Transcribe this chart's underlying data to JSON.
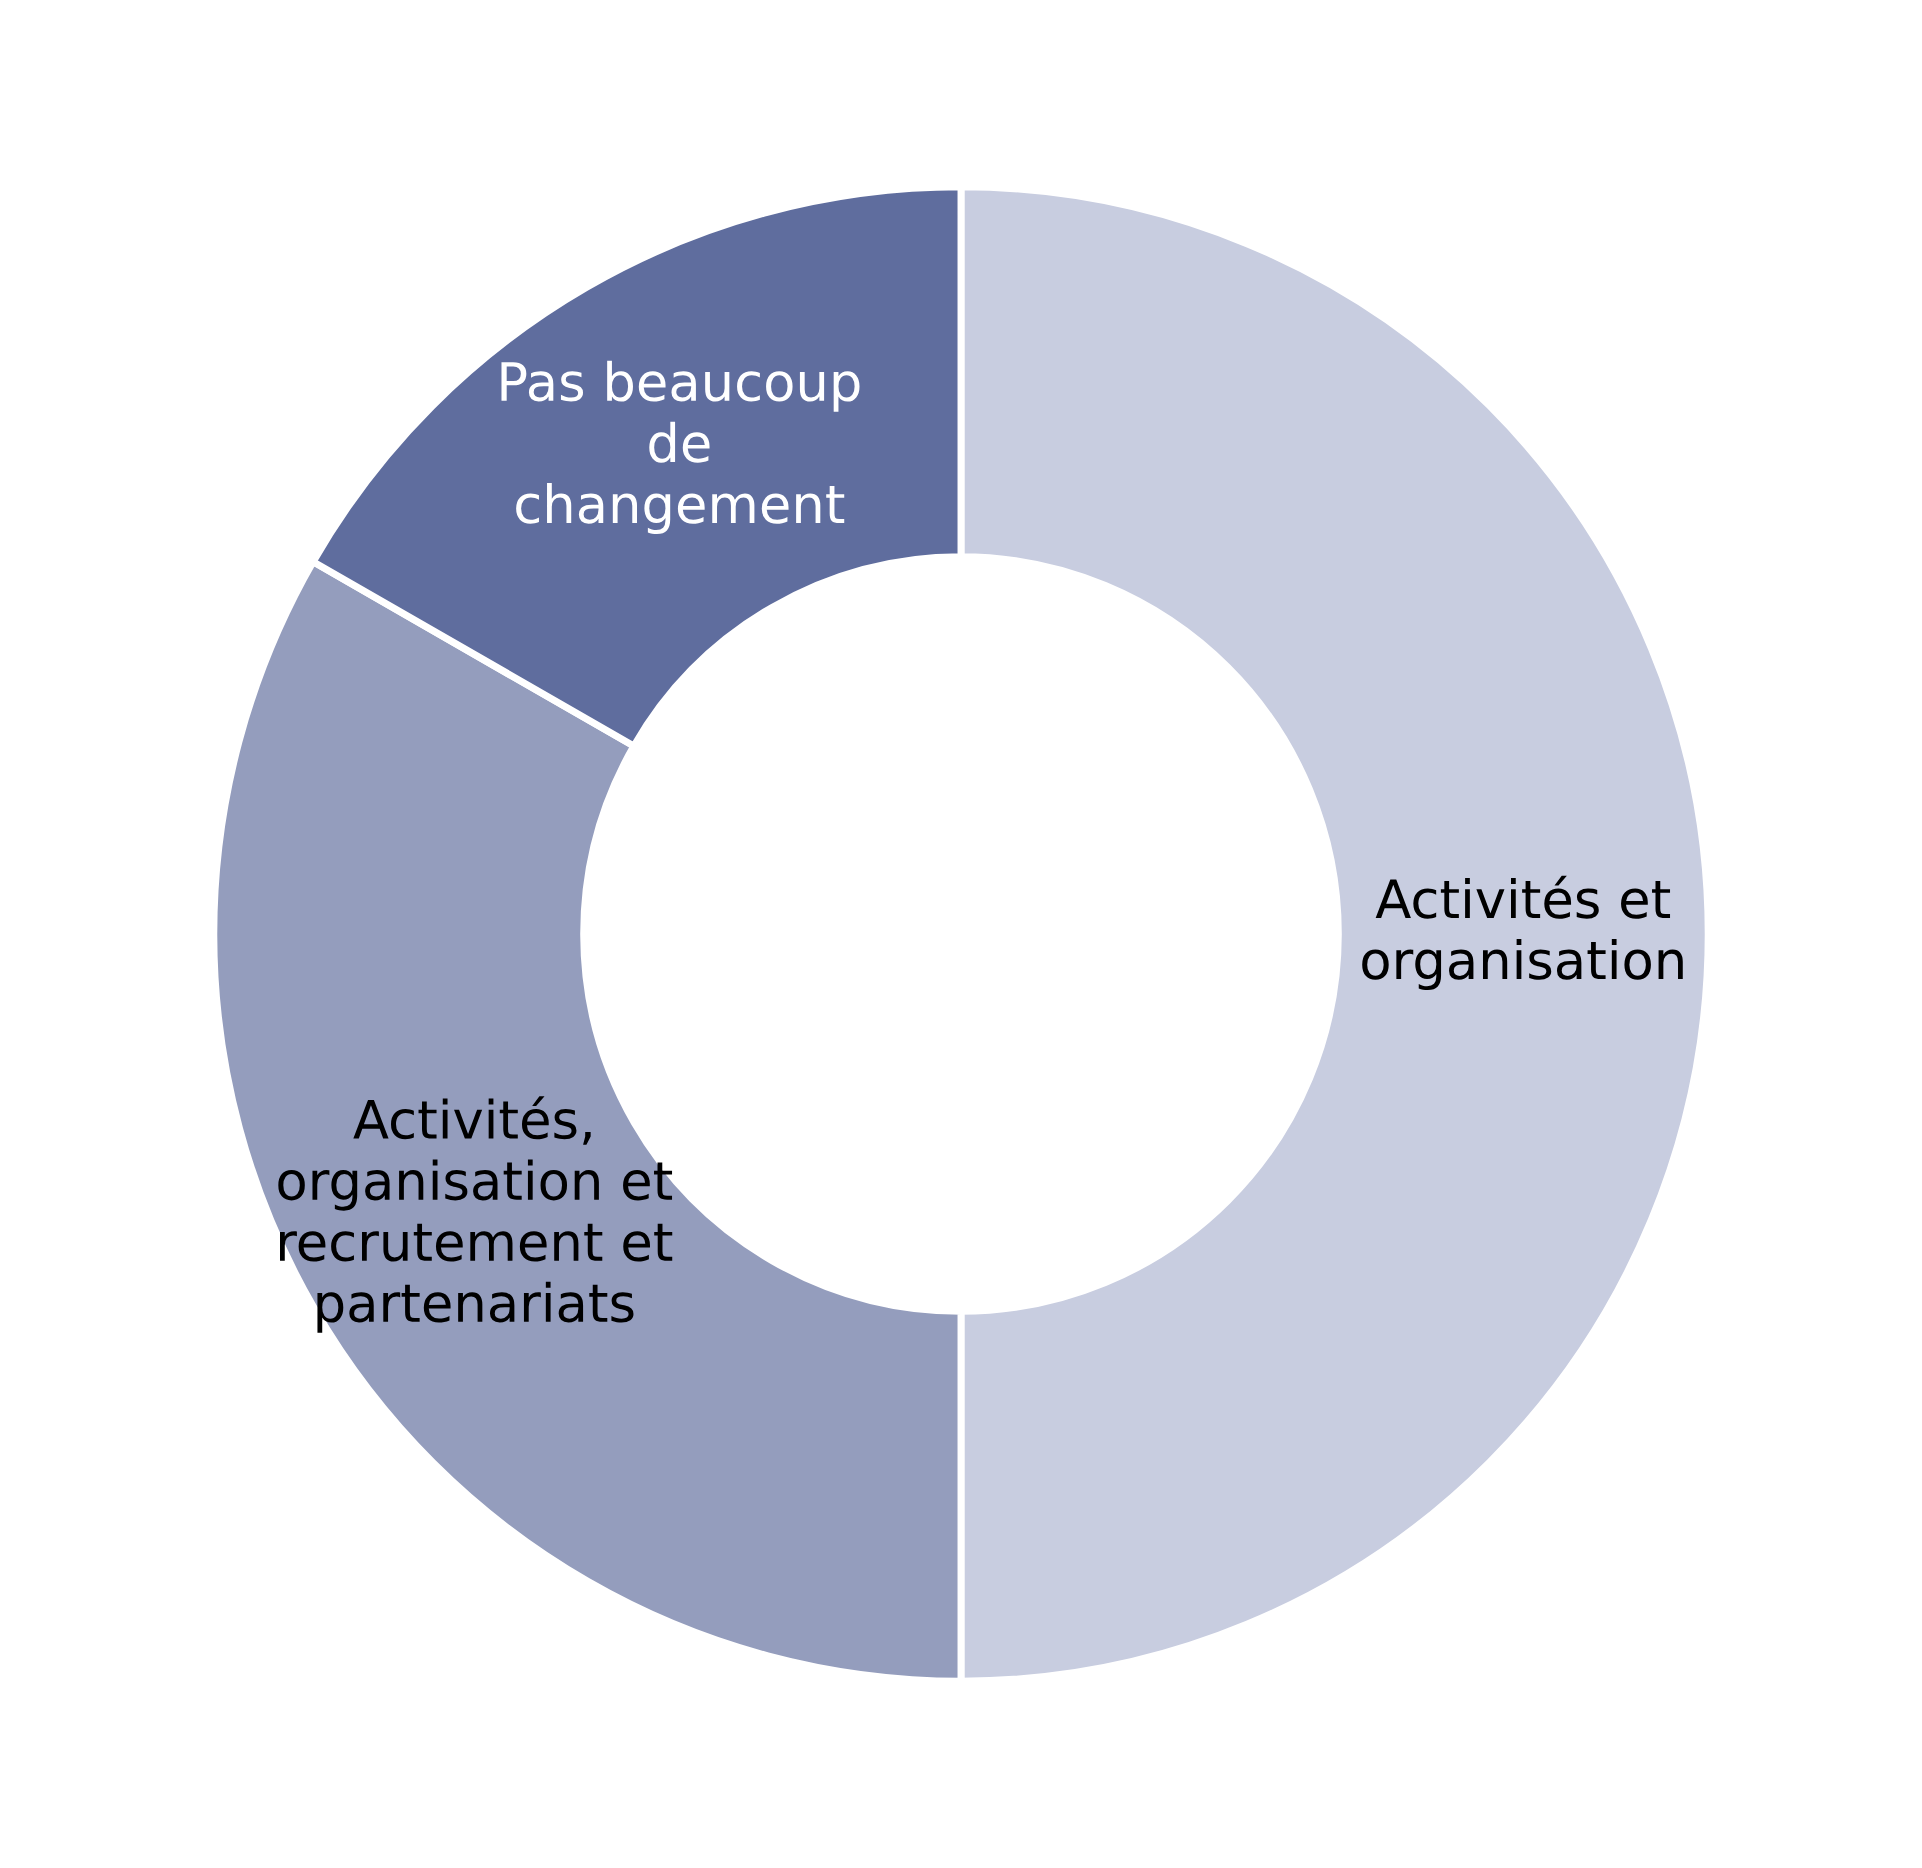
{
  "chart_data": {
    "type": "donut",
    "categories": [
      "Activités et\norganisation",
      "Activités,\norganisation et\nrecrutement et\npartenariats",
      "Pas beaucoup\nde\nchangement"
    ],
    "values": [
      50,
      33.3,
      16.7
    ],
    "colors": [
      "#c8cde0",
      "#949dbd",
      "#5f6d9e"
    ],
    "legend": false
  }
}
